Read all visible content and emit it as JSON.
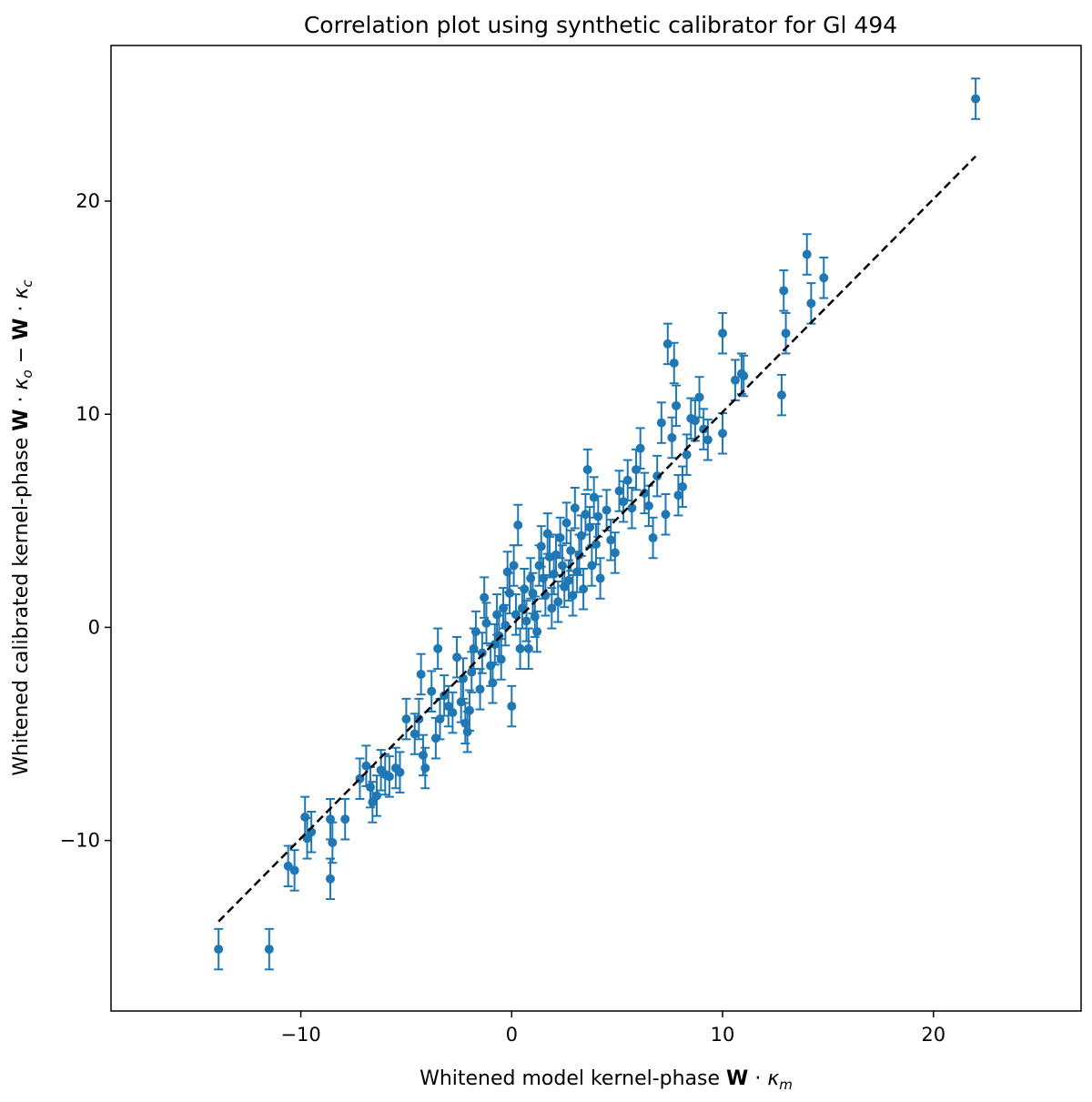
{
  "chart_data": {
    "type": "scatter",
    "title": "Correlation plot using synthetic calibrator for Gl 494",
    "xlabel": {
      "text": "Whitened model kernel-phase ",
      "bold": "W",
      "dot": " · ",
      "symbol": "κ",
      "sub": "m"
    },
    "ylabel": {
      "text": "Whitened calibrated kernel-phase ",
      "bold1": "W",
      "dot1": " · ",
      "sym1": "κ",
      "sub1": "o",
      "minus": " − ",
      "bold2": "W",
      "dot2": " · ",
      "sym2": "κ",
      "sub2": "c"
    },
    "xlim": [
      -19.0,
      27.0
    ],
    "ylim": [
      -18.0,
      27.3
    ],
    "xticks": [
      -10,
      0,
      10,
      20
    ],
    "yticks": [
      -10,
      0,
      10,
      20
    ],
    "xtick_labels": [
      "−10",
      "0",
      "10",
      "20"
    ],
    "ytick_labels": [
      "−10",
      "0",
      "10",
      "20"
    ],
    "grid": false,
    "legend": "none",
    "marker_color": "#1f77b4",
    "fit_line": {
      "style": "dashed",
      "color": "#000000",
      "x": [
        -13.9,
        22.0
      ],
      "y": [
        -13.8,
        22.1
      ]
    },
    "error": 0.95,
    "points": [
      [
        -13.9,
        -15.1
      ],
      [
        -11.5,
        -15.1
      ],
      [
        -10.6,
        -11.2
      ],
      [
        -10.3,
        -11.4
      ],
      [
        -9.8,
        -8.9
      ],
      [
        -9.7,
        -9.9
      ],
      [
        -9.5,
        -9.6
      ],
      [
        -8.6,
        -11.8
      ],
      [
        -8.6,
        -9.0
      ],
      [
        -8.5,
        -10.1
      ],
      [
        -7.9,
        -9.0
      ],
      [
        -7.2,
        -7.1
      ],
      [
        -6.9,
        -6.5
      ],
      [
        -6.7,
        -7.5
      ],
      [
        -6.6,
        -8.2
      ],
      [
        -6.4,
        -7.9
      ],
      [
        -6.2,
        -6.7
      ],
      [
        -6.0,
        -6.9
      ],
      [
        -5.8,
        -7.0
      ],
      [
        -5.5,
        -6.6
      ],
      [
        -5.3,
        -6.8
      ],
      [
        -5.0,
        -4.3
      ],
      [
        -4.6,
        -5.0
      ],
      [
        -4.4,
        -4.3
      ],
      [
        -4.3,
        -2.2
      ],
      [
        -4.2,
        -6.0
      ],
      [
        -4.1,
        -6.6
      ],
      [
        -3.8,
        -3.0
      ],
      [
        -3.6,
        -5.2
      ],
      [
        -3.5,
        -1.0
      ],
      [
        -3.4,
        -4.3
      ],
      [
        -3.2,
        -3.2
      ],
      [
        -3.0,
        -3.7
      ],
      [
        -2.8,
        -4.0
      ],
      [
        -2.6,
        -1.4
      ],
      [
        -2.4,
        -3.5
      ],
      [
        -2.3,
        -2.4
      ],
      [
        -2.2,
        -4.5
      ],
      [
        -2.1,
        -4.9
      ],
      [
        -2.0,
        -3.9
      ],
      [
        -1.9,
        -2.1
      ],
      [
        -1.8,
        -1.0
      ],
      [
        -1.7,
        -0.2
      ],
      [
        -1.5,
        -2.9
      ],
      [
        -1.4,
        -1.2
      ],
      [
        -1.3,
        1.4
      ],
      [
        -1.2,
        0.2
      ],
      [
        -1.0,
        -1.8
      ],
      [
        -0.9,
        -2.6
      ],
      [
        -0.8,
        -0.8
      ],
      [
        -0.7,
        0.6
      ],
      [
        -0.6,
        -0.4
      ],
      [
        -0.5,
        -1.5
      ],
      [
        -0.4,
        0.9
      ],
      [
        -0.3,
        0.1
      ],
      [
        -0.2,
        2.6
      ],
      [
        -0.1,
        1.6
      ],
      [
        0.0,
        -3.7
      ],
      [
        0.1,
        2.9
      ],
      [
        0.2,
        0.6
      ],
      [
        0.3,
        4.8
      ],
      [
        0.4,
        -1.0
      ],
      [
        0.5,
        0.9
      ],
      [
        0.6,
        1.8
      ],
      [
        0.7,
        0.3
      ],
      [
        0.8,
        -1.0
      ],
      [
        0.9,
        2.3
      ],
      [
        1.0,
        1.6
      ],
      [
        1.1,
        0.5
      ],
      [
        1.2,
        -0.2
      ],
      [
        1.3,
        2.9
      ],
      [
        1.4,
        3.8
      ],
      [
        1.5,
        2.3
      ],
      [
        1.6,
        1.5
      ],
      [
        1.7,
        4.4
      ],
      [
        1.8,
        3.3
      ],
      [
        1.9,
        0.9
      ],
      [
        2.0,
        2.5
      ],
      [
        2.1,
        3.4
      ],
      [
        2.2,
        1.2
      ],
      [
        2.3,
        4.2
      ],
      [
        2.4,
        2.9
      ],
      [
        2.5,
        1.9
      ],
      [
        2.6,
        4.9
      ],
      [
        2.7,
        2.2
      ],
      [
        2.8,
        3.6
      ],
      [
        2.9,
        1.5
      ],
      [
        3.0,
        5.6
      ],
      [
        3.1,
        2.6
      ],
      [
        3.2,
        3.4
      ],
      [
        3.3,
        4.3
      ],
      [
        3.4,
        1.8
      ],
      [
        3.5,
        5.3
      ],
      [
        3.6,
        7.4
      ],
      [
        3.7,
        4.7
      ],
      [
        3.8,
        2.9
      ],
      [
        3.9,
        6.1
      ],
      [
        4.0,
        3.9
      ],
      [
        4.1,
        5.2
      ],
      [
        4.2,
        2.3
      ],
      [
        4.5,
        5.5
      ],
      [
        4.7,
        4.1
      ],
      [
        4.9,
        3.5
      ],
      [
        5.1,
        6.4
      ],
      [
        5.3,
        5.9
      ],
      [
        5.5,
        6.9
      ],
      [
        5.7,
        5.6
      ],
      [
        5.9,
        7.4
      ],
      [
        6.1,
        8.4
      ],
      [
        6.3,
        6.3
      ],
      [
        6.5,
        5.7
      ],
      [
        6.7,
        4.2
      ],
      [
        6.9,
        7.1
      ],
      [
        7.1,
        9.6
      ],
      [
        7.3,
        5.3
      ],
      [
        7.4,
        13.3
      ],
      [
        7.6,
        8.9
      ],
      [
        7.7,
        12.4
      ],
      [
        7.8,
        10.4
      ],
      [
        7.9,
        6.2
      ],
      [
        8.1,
        6.6
      ],
      [
        8.3,
        8.1
      ],
      [
        8.5,
        9.8
      ],
      [
        8.7,
        9.7
      ],
      [
        8.9,
        10.8
      ],
      [
        9.1,
        9.3
      ],
      [
        9.3,
        8.8
      ],
      [
        10.0,
        9.1
      ],
      [
        10.0,
        13.8
      ],
      [
        10.6,
        11.6
      ],
      [
        10.9,
        11.9
      ],
      [
        11.0,
        11.8
      ],
      [
        12.8,
        10.9
      ],
      [
        12.9,
        15.8
      ],
      [
        13.0,
        13.8
      ],
      [
        14.0,
        17.5
      ],
      [
        14.2,
        15.2
      ],
      [
        14.8,
        16.4
      ],
      [
        22.0,
        24.8
      ]
    ]
  }
}
